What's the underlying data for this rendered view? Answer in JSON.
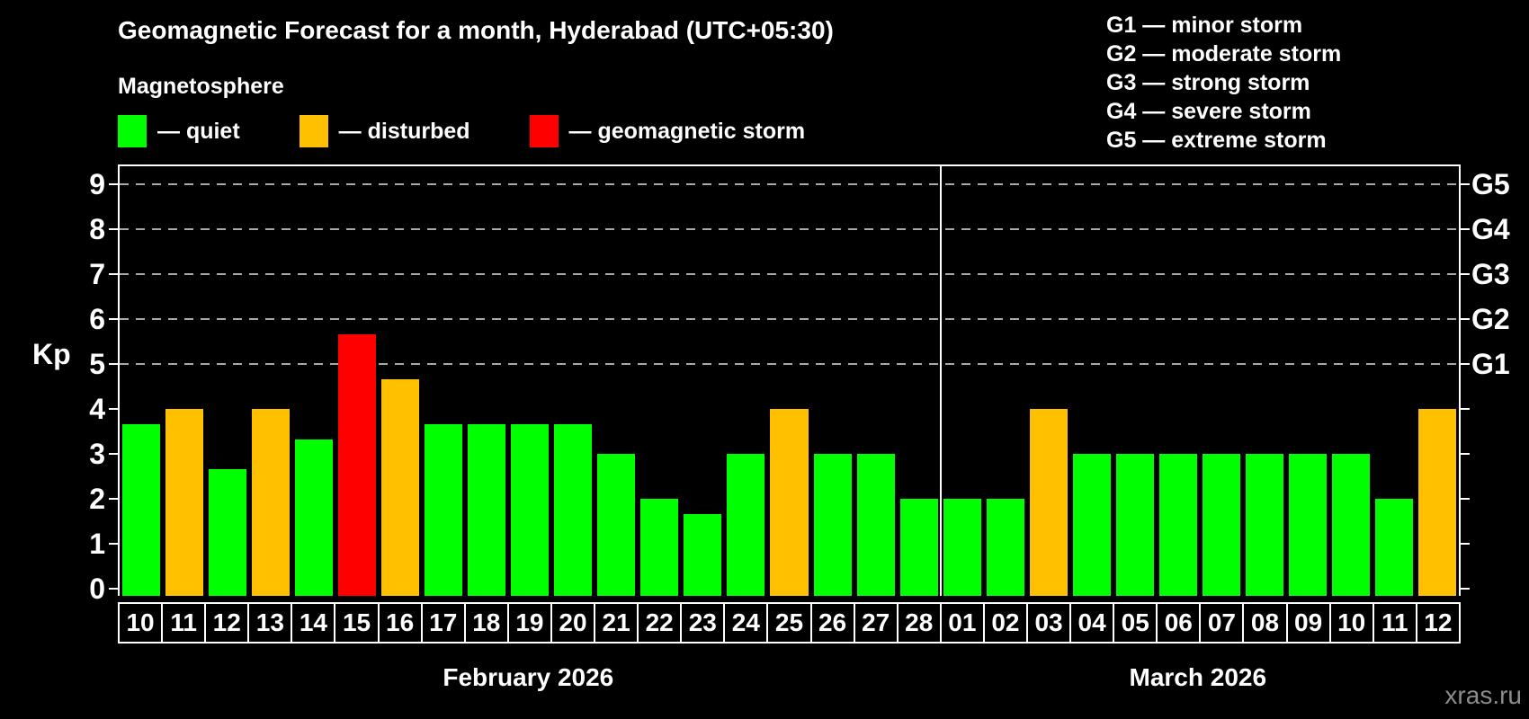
{
  "header": {
    "title": "Geomagnetic Forecast for a month, Hyderabad (UTC+05:30)",
    "subtitle": "Magnetosphere",
    "legend": [
      {
        "name": "quiet",
        "label": "— quiet",
        "color": "#00ff00"
      },
      {
        "name": "disturbed",
        "label": "— disturbed",
        "color": "#ffc000"
      },
      {
        "name": "storm",
        "label": "— geomagnetic storm",
        "color": "#ff0000"
      }
    ],
    "g_scale_legend": [
      "G1 — minor storm",
      "G2 — moderate storm",
      "G3 — strong storm",
      "G4 — severe storm",
      "G5 — extreme storm"
    ]
  },
  "chart_data": {
    "type": "bar",
    "ylabel": "Kp",
    "ylim": [
      0,
      9
    ],
    "yticks": [
      0,
      1,
      2,
      3,
      4,
      5,
      6,
      7,
      8,
      9
    ],
    "gridlines_at_kp": [
      5,
      6,
      7,
      8,
      9
    ],
    "right_axis_labels": [
      {
        "kp": 5,
        "label": "G1"
      },
      {
        "kp": 6,
        "label": "G2"
      },
      {
        "kp": 7,
        "label": "G3"
      },
      {
        "kp": 8,
        "label": "G4"
      },
      {
        "kp": 9,
        "label": "G5"
      }
    ],
    "months": [
      {
        "label": "February 2026",
        "days": 19
      },
      {
        "label": "March 2026",
        "days": 12
      }
    ],
    "categories": [
      "10",
      "11",
      "12",
      "13",
      "14",
      "15",
      "16",
      "17",
      "18",
      "19",
      "20",
      "21",
      "22",
      "23",
      "24",
      "25",
      "26",
      "27",
      "28",
      "01",
      "02",
      "03",
      "04",
      "05",
      "06",
      "07",
      "08",
      "09",
      "10",
      "11",
      "12"
    ],
    "values": [
      3.67,
      4,
      2.67,
      4,
      3.33,
      5.67,
      4.67,
      3.67,
      3.67,
      3.67,
      3.67,
      3,
      2,
      1.67,
      3,
      4,
      3,
      3,
      2,
      2,
      2,
      4,
      3,
      3,
      3,
      3,
      3,
      3,
      3,
      2,
      4
    ],
    "statuses": [
      "quiet",
      "disturbed",
      "quiet",
      "disturbed",
      "quiet",
      "storm",
      "disturbed",
      "quiet",
      "quiet",
      "quiet",
      "quiet",
      "quiet",
      "quiet",
      "quiet",
      "quiet",
      "disturbed",
      "quiet",
      "quiet",
      "quiet",
      "quiet",
      "quiet",
      "disturbed",
      "quiet",
      "quiet",
      "quiet",
      "quiet",
      "quiet",
      "quiet",
      "quiet",
      "quiet",
      "disturbed"
    ],
    "colors": {
      "quiet": "#00ff00",
      "disturbed": "#ffc000",
      "storm": "#ff0000"
    },
    "grid": "dashed horizontal at G1–G5 levels only",
    "legend_position": "top-left"
  },
  "watermark": "xras.ru"
}
